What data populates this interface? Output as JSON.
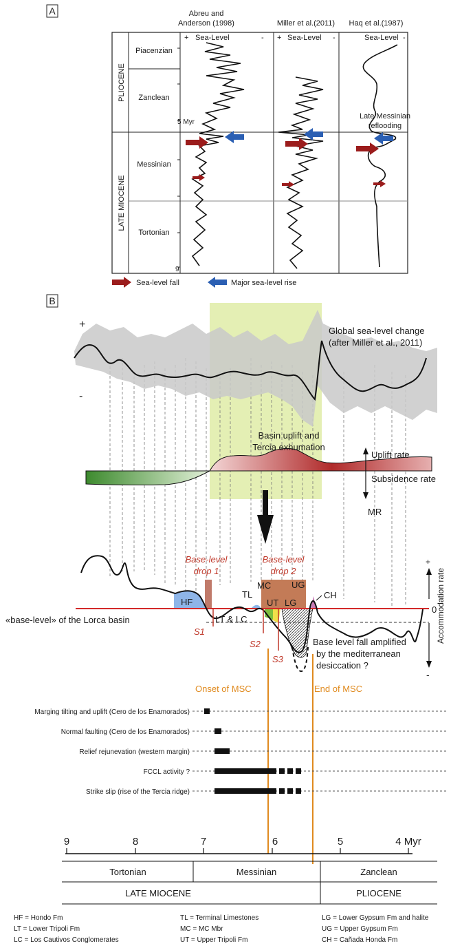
{
  "panel_a": {
    "label": "A",
    "epochs": [
      "PLIOCENE",
      "LATE MIOCENE"
    ],
    "stages": [
      "Piacenzian",
      "Zanclean",
      "Messinian",
      "Tortonian"
    ],
    "age_labels": [
      "5 Myr",
      "9"
    ],
    "curves": [
      {
        "author": "Abreu and",
        "author2": "Anderson (1998)",
        "plus": "+",
        "axis": "Sea-Level",
        "minus": "-"
      },
      {
        "author": "Miller et al.(2011)",
        "author2": "",
        "plus": "+",
        "axis": "Sea-Level",
        "minus": "-"
      },
      {
        "author": "Haq et al.(1987)",
        "author2": "",
        "plus": "",
        "axis": "Sea-Level",
        "minus": "-"
      }
    ],
    "annotation_line1": "Late Messinian",
    "annotation_line2": "reflooding",
    "legend": [
      {
        "label": "Sea-level fall",
        "color": "#9b1c1c"
      },
      {
        "label": "Major sea-level rise",
        "color": "#2b5fb3"
      }
    ]
  },
  "panel_b": {
    "label": "B",
    "plus": "+",
    "minus": "-",
    "global_title_line1": "Global sea-level change",
    "global_title_line2": "(after Miller et al., 2011)",
    "uplift_title_line1": "Basin uplift and",
    "uplift_title_line2": "Tercia exhumation",
    "uplift_rate": "Uplift rate",
    "subsidence_rate": "Subsidence rate",
    "mr": "MR",
    "drop1_line1": "Base-level",
    "drop1_line2": "drop 1",
    "drop2_line1": "Base-level",
    "drop2_line2": "drop 2",
    "units": [
      "HF",
      "TL",
      "MC",
      "UG",
      "CH",
      "UT",
      "LG",
      "LT & LC"
    ],
    "surfaces": [
      "S1",
      "S2",
      "S3"
    ],
    "zero": "0",
    "base_level_label": "«base-level» of the Lorca basin",
    "accommodation": "Accommodation rate",
    "acc_plus": "+",
    "acc_minus": "-",
    "desiccation_line1": "Base level fall amplified",
    "desiccation_line2": "by the mediterranean",
    "desiccation_line3": "desiccation ?",
    "onset": "Onset of MSC",
    "end": "End of MSC",
    "events": [
      "Marging tilting and uplift (Cero de los Enamorados)",
      "Normal faulting (Cero de los Enamorados)",
      "Relief rejunevation (western margin)",
      "FCCL activity ?",
      "Strike slip (rise of the Tercia ridge)"
    ],
    "time_ticks": [
      "9",
      "8",
      "7",
      "6",
      "5",
      "4 Myr"
    ],
    "stage_row": [
      "Tortonian",
      "Messinian",
      "Zanclean"
    ],
    "epoch_row": [
      "LATE MIOCENE",
      "PLIOCENE"
    ],
    "colors": {
      "msc_band": "#e4efb4",
      "uplift": "#b83a3a",
      "subsidence": "#4f9a3c",
      "hf": "#8eb5e8",
      "drop": "#b9643a",
      "baseline": "#d32a2a",
      "msc_line": "#e08a1e"
    }
  },
  "abbreviations": [
    "HF = Hondo Fm",
    "TL = Terminal Limestones",
    "LG = Lower Gypsum Fm and halite",
    "LT = Lower Tripoli Fm",
    "MC = MC Mbr",
    "UG = Upper Gypsum Fm",
    "LC = Los Cautivos Conglomerates",
    "UT = Upper Tripoli Fm",
    "CH = Cañada Honda Fm"
  ]
}
